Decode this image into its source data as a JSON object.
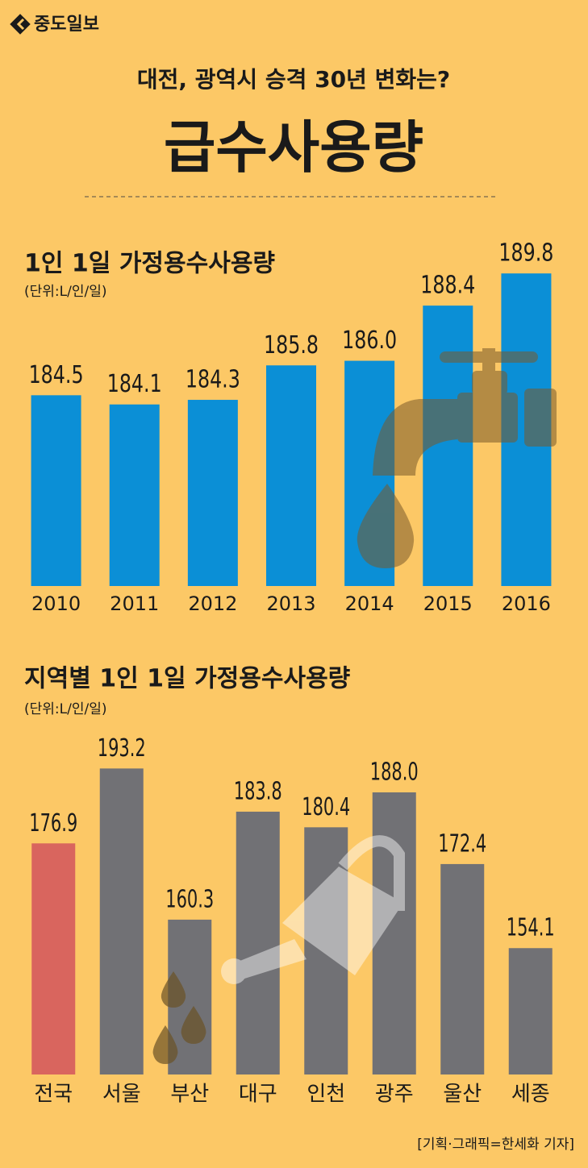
{
  "header": {
    "logo": "중도일보",
    "subtitle": "대전, 광역시 승격 30년 변화는?",
    "title": "급수사용량"
  },
  "chart_data": [
    {
      "type": "bar",
      "title": "1인 1일 가정용수사용량",
      "subtitle": "(단위:L/인/일)",
      "categories": [
        "2010",
        "2011",
        "2012",
        "2013",
        "2014",
        "2015",
        "2016"
      ],
      "values": [
        184.5,
        184.1,
        184.3,
        185.8,
        186.0,
        188.4,
        189.8
      ],
      "value_labels": [
        "184.5",
        "184.1",
        "184.3",
        "185.8",
        "186.0",
        "188.4",
        "189.8"
      ],
      "color": "#0b8fd6",
      "ylim": [
        176.2,
        191
      ]
    },
    {
      "type": "bar",
      "title": "지역별 1인 1일 가정용수사용량",
      "subtitle": "(단위:L/인/일)",
      "categories": [
        "전국",
        "서울",
        "부산",
        "대구",
        "인천",
        "광주",
        "울산",
        "세종"
      ],
      "values": [
        176.9,
        193.2,
        160.3,
        183.8,
        180.4,
        188.0,
        172.4,
        154.1
      ],
      "value_labels": [
        "176.9",
        "193.2",
        "160.3",
        "183.8",
        "180.4",
        "188.0",
        "172.4",
        "154.1"
      ],
      "colors": [
        "#d9655e",
        "#717175",
        "#717175",
        "#717175",
        "#717175",
        "#717175",
        "#717175",
        "#717175"
      ],
      "ylim": [
        126.6,
        198
      ]
    }
  ],
  "footer": {
    "credit": "[기획·그래픽=한세화 기자]"
  }
}
